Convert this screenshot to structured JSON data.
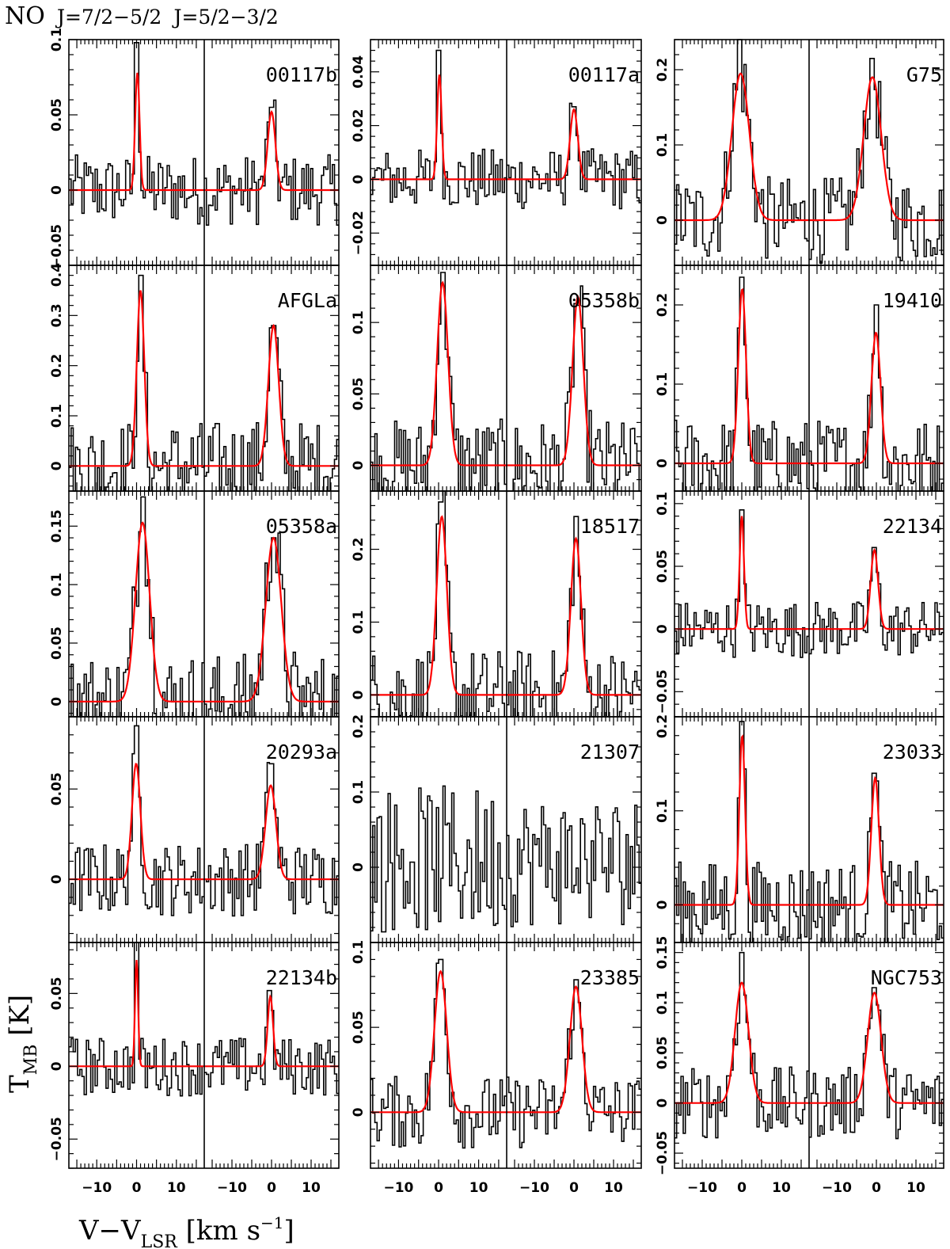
{
  "figure": {
    "molecule": "NO",
    "transition_1": "J=7/2−5/2",
    "transition_2": "J=5/2−3/2",
    "xlabel_main": "V−V",
    "xlabel_sub": "LSR",
    "xlabel_unit": " [km s",
    "xlabel_exp": "−1",
    "xlabel_close": "]",
    "ylabel_main": "T",
    "ylabel_sub": "MB",
    "ylabel_unit": " [K]"
  },
  "colors": {
    "spectrum": "#000000",
    "fit": "#ff0000",
    "frame": "#000000"
  },
  "chart_data": [
    {
      "type": "line",
      "title": "00117b",
      "x_range": [
        -17,
        17
      ],
      "ylim": [
        -0.05,
        0.1
      ],
      "yticks": [
        0,
        0.05,
        0.1
      ],
      "ytick_labels": [
        "0",
        "0.05",
        "0.1"
      ],
      "bottom_label": "−0.05",
      "xticks": [],
      "series": [
        {
          "name": "J=7/2−5/2",
          "peak": 0.078,
          "center": 0.2,
          "fwhm": 1.3,
          "obs_peak": 0.098
        },
        {
          "name": "J=5/2−3/2",
          "peak": 0.052,
          "center": 0.0,
          "fwhm": 2.3,
          "obs_peak": 0.055
        }
      ]
    },
    {
      "type": "line",
      "title": "00117a",
      "x_range": [
        -17,
        17
      ],
      "ylim": [
        -0.032,
        0.052
      ],
      "yticks": [
        -0.02,
        0,
        0.02,
        0.04
      ],
      "ytick_labels": [
        "−0.02",
        "0",
        "0.02",
        "0.04"
      ],
      "xticks": [],
      "series": [
        {
          "name": "J=7/2−5/2",
          "peak": 0.039,
          "center": 0.2,
          "fwhm": 1.3,
          "obs_peak": 0.048
        },
        {
          "name": "J=5/2−3/2",
          "peak": 0.026,
          "center": 0.0,
          "fwhm": 2.3,
          "obs_peak": 0.027
        }
      ]
    },
    {
      "type": "line",
      "title": "G75",
      "x_range": [
        -17,
        17
      ],
      "ylim": [
        -0.06,
        0.24
      ],
      "yticks": [
        0,
        0.1,
        0.2
      ],
      "ytick_labels": [
        "0",
        "0.1",
        "0.2"
      ],
      "xticks": [],
      "series": [
        {
          "name": "J=7/2−5/2",
          "peak": 0.195,
          "center": -0.3,
          "fwhm": 5.2,
          "obs_peak": 0.24
        },
        {
          "name": "J=5/2−3/2",
          "peak": 0.19,
          "center": -1.0,
          "fwhm": 5.2,
          "obs_peak": 0.215
        }
      ]
    },
    {
      "type": "line",
      "title": "AFGLa",
      "x_range": [
        -17,
        17
      ],
      "ylim": [
        -0.05,
        0.4
      ],
      "yticks": [
        0,
        0.1,
        0.2,
        0.3
      ],
      "ytick_labels": [
        "0",
        "0.1",
        "0.2",
        "0.3"
      ],
      "top_label": "0.4",
      "xticks": [],
      "series": [
        {
          "name": "J=7/2−5/2",
          "peak": 0.35,
          "center": 1.0,
          "fwhm": 2.2,
          "obs_peak": 0.38
        },
        {
          "name": "J=5/2−3/2",
          "peak": 0.28,
          "center": 0.5,
          "fwhm": 3.1,
          "obs_peak": 0.28
        }
      ]
    },
    {
      "type": "line",
      "title": "05358b",
      "x_range": [
        -17,
        17
      ],
      "ylim": [
        -0.018,
        0.14
      ],
      "yticks": [
        0,
        0.05,
        0.1
      ],
      "ytick_labels": [
        "0",
        "0.05",
        "0.1"
      ],
      "xticks": [],
      "series": [
        {
          "name": "J=7/2−5/2",
          "peak": 0.128,
          "center": 1.0,
          "fwhm": 3.2,
          "obs_peak": 0.135
        },
        {
          "name": "J=5/2−3/2",
          "peak": 0.118,
          "center": 1.0,
          "fwhm": 3.2,
          "obs_peak": 0.112
        }
      ]
    },
    {
      "type": "line",
      "title": "19410",
      "x_range": [
        -17,
        17
      ],
      "ylim": [
        -0.035,
        0.25
      ],
      "yticks": [
        0,
        0.1,
        0.2
      ],
      "ytick_labels": [
        "0",
        "0.1",
        "0.2"
      ],
      "xticks": [],
      "series": [
        {
          "name": "J=7/2−5/2",
          "peak": 0.22,
          "center": 0.1,
          "fwhm": 2.3,
          "obs_peak": 0.235
        },
        {
          "name": "J=5/2−3/2",
          "peak": 0.165,
          "center": -0.1,
          "fwhm": 2.7,
          "obs_peak": 0.2
        }
      ]
    },
    {
      "type": "line",
      "title": "05358a",
      "x_range": [
        -17,
        17
      ],
      "ylim": [
        -0.013,
        0.18
      ],
      "yticks": [
        0,
        0.05,
        0.1,
        0.15
      ],
      "ytick_labels": [
        "0",
        "0.05",
        "0.1",
        "0.15"
      ],
      "xticks": [],
      "series": [
        {
          "name": "J=7/2−5/2",
          "peak": 0.153,
          "center": 1.5,
          "fwhm": 4.2,
          "obs_peak": 0.175
        },
        {
          "name": "J=5/2−3/2",
          "peak": 0.14,
          "center": 0.5,
          "fwhm": 4.6,
          "obs_peak": 0.14
        }
      ]
    },
    {
      "type": "line",
      "title": "18517",
      "x_range": [
        -17,
        17
      ],
      "ylim": [
        -0.03,
        0.28
      ],
      "yticks": [
        0,
        0.1,
        0.2
      ],
      "ytick_labels": [
        "0",
        "0.1",
        "0.2"
      ],
      "xticks": [],
      "series": [
        {
          "name": "J=7/2−5/2",
          "peak": 0.245,
          "center": 0.8,
          "fwhm": 3.0,
          "obs_peak": 0.265
        },
        {
          "name": "J=5/2−3/2",
          "peak": 0.215,
          "center": 0.5,
          "fwhm": 3.0,
          "obs_peak": 0.245
        }
      ]
    },
    {
      "type": "line",
      "title": "22134",
      "x_range": [
        -17,
        17
      ],
      "ylim": [
        -0.07,
        0.11
      ],
      "yticks": [
        -0.05,
        0,
        0.05,
        0.1
      ],
      "ytick_labels": [
        "−0.05",
        "0",
        "0.05",
        "0.1"
      ],
      "xticks": [],
      "series": [
        {
          "name": "J=7/2−5/2",
          "peak": 0.09,
          "center": 0.0,
          "fwhm": 1.3,
          "obs_peak": 0.095
        },
        {
          "name": "J=5/2−3/2",
          "peak": 0.063,
          "center": -0.5,
          "fwhm": 2.2,
          "obs_peak": 0.065
        }
      ]
    },
    {
      "type": "line",
      "title": "20293a",
      "x_range": [
        -17,
        17
      ],
      "ylim": [
        -0.035,
        0.09
      ],
      "yticks": [
        0,
        0.05
      ],
      "ytick_labels": [
        "0",
        "0.05"
      ],
      "xticks": [],
      "series": [
        {
          "name": "J=7/2−5/2",
          "peak": 0.064,
          "center": -0.1,
          "fwhm": 2.5,
          "obs_peak": 0.085
        },
        {
          "name": "J=5/2−3/2",
          "peak": 0.052,
          "center": -0.2,
          "fwhm": 3.1,
          "obs_peak": 0.064
        }
      ]
    },
    {
      "type": "line",
      "title": "21307",
      "x_range": [
        -17,
        17
      ],
      "ylim": [
        -0.1,
        0.2
      ],
      "yticks": [
        0,
        0.1
      ],
      "ytick_labels": [
        "0",
        "0.1"
      ],
      "top_label": "0.2",
      "xticks": [],
      "series": [
        {
          "name": "J=7/2−5/2",
          "peak": 0,
          "center": 0,
          "fwhm": 1,
          "obs_peak": 0.18,
          "no_fit": true
        },
        {
          "name": "J=5/2−3/2",
          "peak": 0,
          "center": 0,
          "fwhm": 1,
          "obs_peak": 0.16,
          "no_fit": true
        }
      ]
    },
    {
      "type": "line",
      "title": "23033",
      "x_range": [
        -17,
        17
      ],
      "ylim": [
        -0.04,
        0.2
      ],
      "yticks": [
        0,
        0.1
      ],
      "ytick_labels": [
        "0",
        "0.1"
      ],
      "top_label": "0.2",
      "xticks": [],
      "series": [
        {
          "name": "J=7/2−5/2",
          "peak": 0.18,
          "center": 0.1,
          "fwhm": 1.7,
          "obs_peak": 0.195
        },
        {
          "name": "J=5/2−3/2",
          "peak": 0.135,
          "center": -0.3,
          "fwhm": 2.3,
          "obs_peak": 0.14
        }
      ]
    },
    {
      "type": "line",
      "title": "22134b",
      "x_range": [
        -17,
        17
      ],
      "ylim": [
        -0.07,
        0.085
      ],
      "yticks": [
        -0.05,
        0,
        0.05
      ],
      "ytick_labels": [
        "−0.05",
        "0",
        "0.05"
      ],
      "xticks": [
        -10,
        0,
        10
      ],
      "series": [
        {
          "name": "J=7/2−5/2",
          "peak": 0.073,
          "center": 0.0,
          "fwhm": 0.9,
          "obs_peak": 0.085
        },
        {
          "name": "J=5/2−3/2",
          "peak": 0.048,
          "center": -0.3,
          "fwhm": 1.6,
          "obs_peak": 0.052
        }
      ]
    },
    {
      "type": "line",
      "title": "23385",
      "x_range": [
        -17,
        17
      ],
      "ylim": [
        -0.033,
        0.1
      ],
      "yticks": [
        0,
        0.05
      ],
      "ytick_labels": [
        "0",
        "0.05"
      ],
      "top_label": "0.1",
      "xticks": [
        -10,
        0,
        10
      ],
      "series": [
        {
          "name": "J=7/2−5/2",
          "peak": 0.083,
          "center": 0.5,
          "fwhm": 3.6,
          "obs_peak": 0.09
        },
        {
          "name": "J=5/2−3/2",
          "peak": 0.074,
          "center": 0.5,
          "fwhm": 3.6,
          "obs_peak": 0.078
        }
      ]
    },
    {
      "type": "line",
      "title": "NGC753",
      "x_range": [
        -17,
        17
      ],
      "ylim": [
        -0.065,
        0.16
      ],
      "yticks": [
        -0.05,
        0,
        0.05,
        0.1,
        0.15
      ],
      "ytick_labels": [
        "−0.05",
        "0",
        "0.05",
        "0.1",
        "0.15"
      ],
      "xticks": [
        -10,
        0,
        10
      ],
      "series": [
        {
          "name": "J=7/2−5/2",
          "peak": 0.12,
          "center": 0.0,
          "fwhm": 4.0,
          "obs_peak": 0.15
        },
        {
          "name": "J=5/2−3/2",
          "peak": 0.11,
          "center": -0.5,
          "fwhm": 4.0,
          "obs_peak": 0.115
        }
      ]
    }
  ]
}
